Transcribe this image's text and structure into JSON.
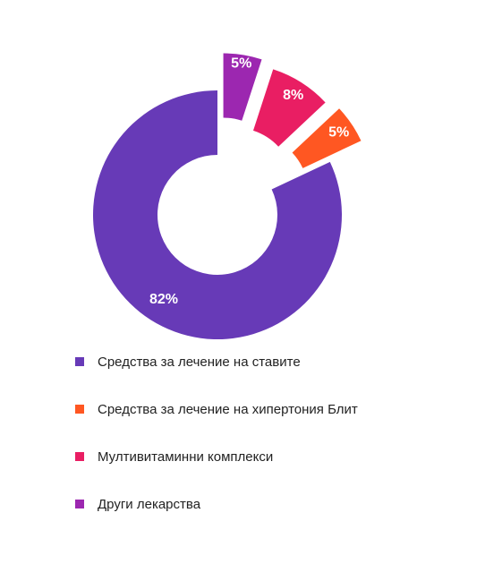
{
  "chart_data": {
    "type": "pie",
    "variant": "donut",
    "exploded": true,
    "legend_position": "bottom-left",
    "categories": [
      "Средства за лечение на ставите",
      "Средства за лечение на хипертония Блит",
      "Мултивитаминни комплекси",
      "Други лекарства"
    ],
    "values": [
      82,
      5,
      8,
      5
    ],
    "labels": [
      "82%",
      "5%",
      "8%",
      "5%"
    ],
    "colors": [
      "#673AB7",
      "#FF5722",
      "#E91E63",
      "#9C27B0"
    ],
    "title": ""
  }
}
